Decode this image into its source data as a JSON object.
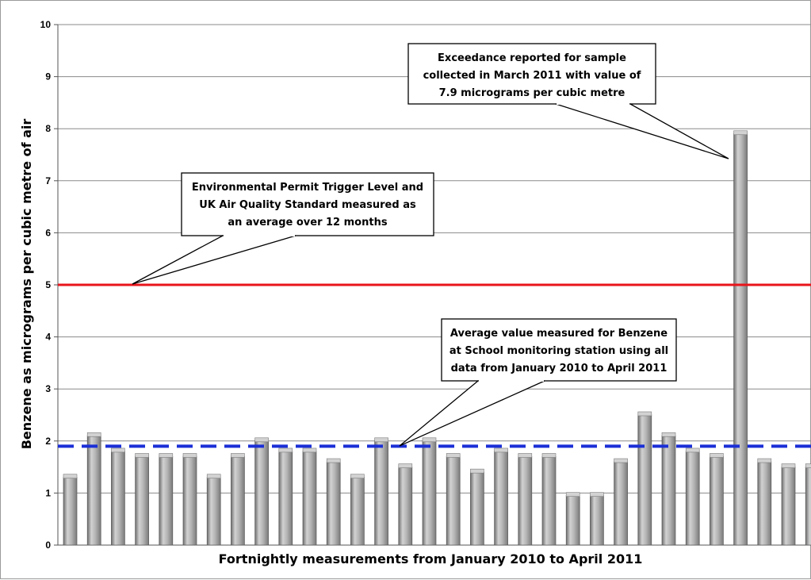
{
  "chart_data": {
    "type": "bar",
    "title": "",
    "xlabel": "Fortnightly measurements from January 2010 to April 2011",
    "ylabel": "Benzene as micrograms per cubic metre of air",
    "ylim": [
      0,
      10
    ],
    "yticks": [
      "0",
      "1",
      "2",
      "3",
      "4",
      "5",
      "6",
      "7",
      "8",
      "9",
      "10"
    ],
    "grid": true,
    "legend": "none",
    "values": [
      1.3,
      2.1,
      1.8,
      1.7,
      1.7,
      1.7,
      1.3,
      1.7,
      2.0,
      1.8,
      1.8,
      1.6,
      1.3,
      2.0,
      1.5,
      2.0,
      1.7,
      1.4,
      1.8,
      1.7,
      1.7,
      0.95,
      0.95,
      1.6,
      2.5,
      2.1,
      1.8,
      1.7,
      7.9,
      1.6,
      1.5,
      1.5
    ],
    "reference_lines": [
      {
        "value": 5.0,
        "style": "solid",
        "color": "#e8141b"
      },
      {
        "value": 1.9,
        "style": "dashed",
        "color": "#1a2fd6"
      }
    ],
    "annotations": [
      {
        "lines": [
          "Exceedance reported for sample",
          "collected in March 2011 with value of",
          "7.9 micrograms per cubic metre"
        ]
      },
      {
        "lines": [
          "Environmental Permit Trigger Level and",
          "UK Air Quality Standard measured as",
          "an average over 12 months"
        ]
      },
      {
        "lines": [
          "Average value measured for Benzene",
          "at School monitoring station using all",
          "data from January 2010 to April 2011"
        ]
      }
    ],
    "colors": {
      "bar_light": "#d2d2d2",
      "bar_mid": "#a8a8a8",
      "bar_dark": "#6e6e6e",
      "grid": "#8a8a8a"
    }
  }
}
